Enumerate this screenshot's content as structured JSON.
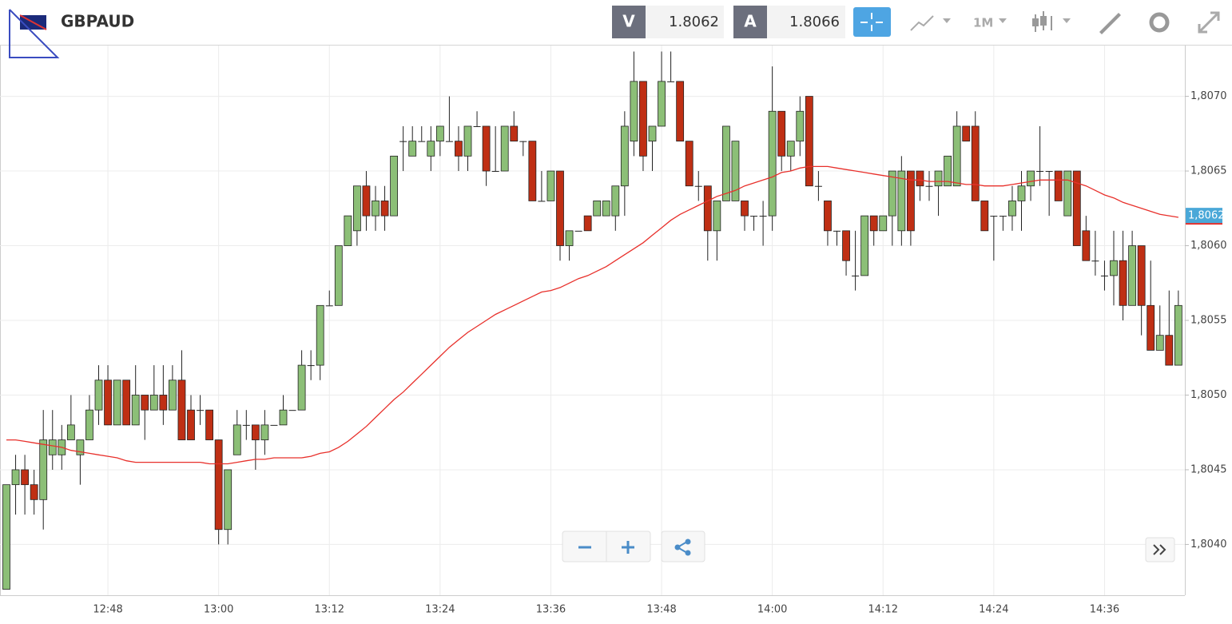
{
  "toolbar": {
    "sell_label": "V",
    "sell_price": "1.8062",
    "buy_label": "A",
    "buy_price": "1.8066",
    "timeframe": "1M"
  },
  "chart_data": {
    "type": "candlestick",
    "title": "GBPAUD",
    "categories": [
      null,
      null,
      null,
      null,
      null,
      null,
      null,
      null,
      null,
      null,
      null,
      "12:48",
      null,
      null,
      null,
      null,
      null,
      null,
      null,
      null,
      null,
      null,
      null,
      "13:00",
      null,
      null,
      null,
      null,
      null,
      null,
      null,
      null,
      null,
      null,
      null,
      "13:12",
      null,
      null,
      null,
      null,
      null,
      null,
      null,
      null,
      null,
      null,
      null,
      "13:24",
      null,
      null,
      null,
      null,
      null,
      null,
      null,
      null,
      null,
      null,
      null,
      "13:36",
      null,
      null,
      null,
      null,
      null,
      null,
      null,
      null,
      null,
      null,
      null,
      "13:48",
      null,
      null,
      null,
      null,
      null,
      null,
      null,
      null,
      null,
      null,
      null,
      "14:00",
      null,
      null,
      null,
      null,
      null,
      null,
      null,
      null,
      null,
      null,
      null,
      "14:12",
      null,
      null,
      null,
      null,
      null,
      null,
      null,
      null,
      null,
      null,
      null,
      "14:24",
      null,
      null,
      null,
      null,
      null,
      null,
      null,
      null,
      null,
      null,
      null,
      "14:36",
      null,
      null,
      null,
      null,
      null,
      null,
      null,
      null
    ],
    "open": [
      1.8037,
      1.8044,
      1.8045,
      1.8044,
      1.8043,
      1.8046,
      1.8046,
      1.8047,
      1.8046,
      1.8047,
      1.8049,
      1.8051,
      1.8048,
      1.8051,
      1.8048,
      1.805,
      1.8049,
      1.805,
      1.8049,
      1.8051,
      1.8049,
      1.8049,
      1.8049,
      1.8047,
      1.8041,
      1.8046,
      1.8048,
      1.8048,
      1.8047,
      1.8048,
      1.8048,
      1.8049,
      1.8049,
      1.8052,
      1.8052,
      1.8056,
      1.8056,
      1.806,
      1.8061,
      1.8064,
      1.8062,
      1.8063,
      1.8062,
      1.8067,
      1.8066,
      1.8067,
      1.8066,
      1.8067,
      1.8067,
      1.8067,
      1.8066,
      1.8068,
      1.8068,
      1.8065,
      1.8065,
      1.8068,
      1.8067,
      1.8067,
      1.8063,
      1.8063,
      1.8065,
      1.806,
      1.8061,
      1.8062,
      1.8062,
      1.8062,
      1.8062,
      1.8064,
      1.8067,
      1.8071,
      1.8067,
      1.8068,
      1.8071,
      1.8071,
      1.8067,
      1.8064,
      1.8064,
      1.8061,
      1.8063,
      1.8063,
      1.8063,
      1.8062,
      1.8062,
      1.8062,
      1.8069,
      1.8066,
      1.8067,
      1.807,
      1.8064,
      1.8063,
      1.8061,
      1.8061,
      1.8058,
      1.8058,
      1.8062,
      1.8061,
      1.8062,
      1.8061,
      1.8065,
      1.8065,
      1.8064,
      1.8064,
      1.8064,
      1.8064,
      1.8068,
      1.8068,
      1.8063,
      1.8062,
      1.8062,
      1.8062,
      1.8063,
      1.8064,
      1.8065,
      1.8065,
      1.8065,
      1.8062,
      1.8065,
      1.8061,
      1.8059,
      1.8058,
      1.8058,
      1.8059,
      1.8056,
      1.806,
      1.8056,
      1.8053,
      1.8054,
      1.8052
    ],
    "high": [
      1.8044,
      1.8046,
      1.8046,
      1.8045,
      1.8049,
      1.8049,
      1.8048,
      1.805,
      1.8047,
      1.805,
      1.8052,
      1.8052,
      1.8051,
      1.8051,
      1.8052,
      1.805,
      1.8052,
      1.8052,
      1.8052,
      1.8053,
      1.805,
      1.805,
      1.8049,
      1.8047,
      1.8045,
      1.8049,
      1.8049,
      1.8048,
      1.8049,
      1.8048,
      1.805,
      1.8049,
      1.8053,
      1.8053,
      1.8056,
      1.8057,
      1.806,
      1.8062,
      1.8064,
      1.8065,
      1.8064,
      1.8064,
      1.8066,
      1.8068,
      1.8068,
      1.8068,
      1.8068,
      1.8068,
      1.807,
      1.8068,
      1.8068,
      1.8069,
      1.8068,
      1.8068,
      1.8068,
      1.8069,
      1.8067,
      1.8067,
      1.8065,
      1.8065,
      1.8065,
      1.8061,
      1.8061,
      1.8062,
      1.8063,
      1.8063,
      1.8064,
      1.8069,
      1.8073,
      1.8071,
      1.8068,
      1.8073,
      1.8073,
      1.8071,
      1.8067,
      1.8065,
      1.8064,
      1.8063,
      1.8068,
      1.8067,
      1.8063,
      1.8062,
      1.8063,
      1.8072,
      1.8069,
      1.8067,
      1.807,
      1.807,
      1.8065,
      1.8063,
      1.8061,
      1.8061,
      1.8061,
      1.8062,
      1.8062,
      1.8062,
      1.8065,
      1.8066,
      1.8065,
      1.8065,
      1.8065,
      1.8065,
      1.8066,
      1.8069,
      1.8068,
      1.8069,
      1.8063,
      1.8062,
      1.8062,
      1.8064,
      1.8065,
      1.8065,
      1.8068,
      1.8065,
      1.8065,
      1.8065,
      1.8065,
      1.8062,
      1.8061,
      1.8059,
      1.8061,
      1.8061,
      1.8061,
      1.806,
      1.8059,
      1.8056,
      1.8057,
      1.8057
    ],
    "low": [
      1.8037,
      1.8042,
      1.8042,
      1.8042,
      1.8041,
      1.8045,
      1.8045,
      1.8047,
      1.8044,
      1.8047,
      1.8048,
      1.8048,
      1.8048,
      1.8048,
      1.8048,
      1.8047,
      1.8049,
      1.8048,
      1.8049,
      1.8047,
      1.8047,
      1.8048,
      1.8047,
      1.804,
      1.804,
      1.8046,
      1.8047,
      1.8045,
      1.8046,
      1.8048,
      1.8048,
      1.8049,
      1.8049,
      1.8051,
      1.8051,
      1.8056,
      1.8056,
      1.806,
      1.806,
      1.8061,
      1.8061,
      1.8061,
      1.8062,
      1.8065,
      1.8066,
      1.8067,
      1.8065,
      1.8066,
      1.8067,
      1.8065,
      1.8065,
      1.8068,
      1.8064,
      1.8065,
      1.8065,
      1.8067,
      1.8066,
      1.8063,
      1.8063,
      1.8063,
      1.8059,
      1.8059,
      1.8061,
      1.8061,
      1.8062,
      1.8062,
      1.8061,
      1.8062,
      1.8066,
      1.8065,
      1.8065,
      1.8068,
      1.8071,
      1.8067,
      1.8064,
      1.8063,
      1.8059,
      1.8059,
      1.8063,
      1.8063,
      1.8061,
      1.8061,
      1.806,
      1.8061,
      1.8065,
      1.8065,
      1.8066,
      1.8064,
      1.8063,
      1.806,
      1.806,
      1.8058,
      1.8057,
      1.8058,
      1.806,
      1.8061,
      1.806,
      1.806,
      1.806,
      1.8063,
      1.8063,
      1.8062,
      1.8064,
      1.8064,
      1.8067,
      1.8063,
      1.8061,
      1.8059,
      1.8061,
      1.8061,
      1.8061,
      1.8063,
      1.8064,
      1.8062,
      1.8063,
      1.8062,
      1.806,
      1.8059,
      1.8058,
      1.8057,
      1.8056,
      1.8055,
      1.8056,
      1.8054,
      1.8053,
      1.8053,
      1.8052,
      1.8052
    ],
    "close": [
      1.8044,
      1.8045,
      1.8044,
      1.8043,
      1.8047,
      1.8047,
      1.8047,
      1.8048,
      1.8047,
      1.8049,
      1.8051,
      1.8048,
      1.8051,
      1.8048,
      1.805,
      1.8049,
      1.805,
      1.8049,
      1.8051,
      1.8047,
      1.8047,
      1.8049,
      1.8047,
      1.8041,
      1.8045,
      1.8048,
      1.8048,
      1.8047,
      1.8048,
      1.8048,
      1.8049,
      1.8049,
      1.8052,
      1.8052,
      1.8056,
      1.8056,
      1.806,
      1.8062,
      1.8064,
      1.8062,
      1.8063,
      1.8062,
      1.8066,
      1.8067,
      1.8067,
      1.8067,
      1.8067,
      1.8068,
      1.8067,
      1.8066,
      1.8068,
      1.8068,
      1.8065,
      1.8065,
      1.8068,
      1.8067,
      1.8067,
      1.8063,
      1.8063,
      1.8065,
      1.806,
      1.8061,
      1.8061,
      1.8061,
      1.8063,
      1.8063,
      1.8064,
      1.8068,
      1.8071,
      1.8066,
      1.8068,
      1.8071,
      1.8071,
      1.8067,
      1.8064,
      1.8064,
      1.8061,
      1.8063,
      1.8068,
      1.8067,
      1.8062,
      1.8062,
      1.8062,
      1.8069,
      1.8066,
      1.8067,
      1.8069,
      1.8064,
      1.8064,
      1.8061,
      1.8061,
      1.8059,
      1.8058,
      1.8062,
      1.8061,
      1.8062,
      1.8065,
      1.8065,
      1.8061,
      1.8064,
      1.8064,
      1.8065,
      1.8066,
      1.8068,
      1.8067,
      1.8063,
      1.8061,
      1.8062,
      1.8062,
      1.8063,
      1.8064,
      1.8065,
      1.8065,
      1.8065,
      1.8063,
      1.8065,
      1.806,
      1.8059,
      1.8059,
      1.8058,
      1.8059,
      1.8056,
      1.806,
      1.8056,
      1.8053,
      1.8054,
      1.8052,
      1.8056
    ],
    "up_color": "#8cbf77",
    "down_color": "#bf2f14",
    "overlay": {
      "color": "#e8302b",
      "values": [
        1.8047,
        1.8047,
        1.80469,
        1.80468,
        1.80467,
        1.80466,
        1.80465,
        1.80463,
        1.80462,
        1.80461,
        1.8046,
        1.80459,
        1.80458,
        1.80456,
        1.80455,
        1.80455,
        1.80455,
        1.80455,
        1.80455,
        1.80455,
        1.80455,
        1.80455,
        1.80454,
        1.80454,
        1.80454,
        1.80455,
        1.80456,
        1.80457,
        1.80457,
        1.80458,
        1.80458,
        1.80458,
        1.80458,
        1.80459,
        1.80461,
        1.80462,
        1.80465,
        1.80469,
        1.80474,
        1.80479,
        1.80485,
        1.80491,
        1.80497,
        1.80502,
        1.80508,
        1.80514,
        1.8052,
        1.80526,
        1.80532,
        1.80537,
        1.80542,
        1.80546,
        1.8055,
        1.80554,
        1.80557,
        1.8056,
        1.80563,
        1.80566,
        1.80569,
        1.8057,
        1.80572,
        1.80575,
        1.80578,
        1.8058,
        1.80583,
        1.80586,
        1.8059,
        1.80594,
        1.80598,
        1.80602,
        1.80607,
        1.80612,
        1.80617,
        1.80621,
        1.80624,
        1.80627,
        1.8063,
        1.80633,
        1.80635,
        1.80637,
        1.8064,
        1.80642,
        1.80644,
        1.80646,
        1.80649,
        1.8065,
        1.80652,
        1.80653,
        1.80653,
        1.80653,
        1.80652,
        1.80651,
        1.8065,
        1.80649,
        1.80648,
        1.80647,
        1.80646,
        1.80645,
        1.80644,
        1.80644,
        1.80643,
        1.80643,
        1.80643,
        1.80642,
        1.80641,
        1.80641,
        1.8064,
        1.8064,
        1.8064,
        1.80641,
        1.80642,
        1.80643,
        1.80644,
        1.80644,
        1.80644,
        1.80644,
        1.80642,
        1.8064,
        1.80637,
        1.80634,
        1.80632,
        1.80629,
        1.80627,
        1.80625,
        1.80623,
        1.80621,
        1.8062,
        1.80619
      ]
    },
    "last_label": {
      "value": 1.8062,
      "label": "1,8062"
    },
    "ylim": [
      1.80366,
      1.80734
    ],
    "yticks": [
      {
        "value": 1.804,
        "label": "1,8040"
      },
      {
        "value": 1.8045,
        "label": "1,8045"
      },
      {
        "value": 1.805,
        "label": "1,8050"
      },
      {
        "value": 1.8055,
        "label": "1,8055"
      },
      {
        "value": 1.806,
        "label": "1,8060"
      },
      {
        "value": 1.8065,
        "label": "1,8065"
      },
      {
        "value": 1.807,
        "label": "1,8070"
      }
    ],
    "grid": true
  }
}
